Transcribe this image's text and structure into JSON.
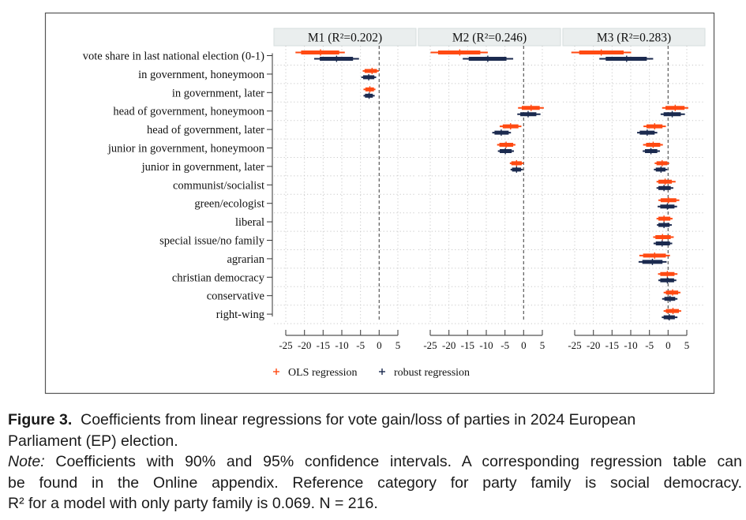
{
  "chart_data": {
    "type": "coefficient-plot",
    "xticks": [
      -25,
      -20,
      -15,
      -10,
      -5,
      0,
      5
    ],
    "xlim": [
      -25,
      5
    ],
    "reference_line": 0,
    "grid": true,
    "legend_position": "bottom-left",
    "categories": [
      "vote share in last national election (0-1)",
      "in government, honeymoon",
      "in government, later",
      "head of government, honeymoon",
      "head of government, later",
      "junior in government, honeymoon",
      "junior in government, later",
      "communist/socialist",
      "green/ecologist",
      "liberal",
      "special issue/no family",
      "agrarian",
      "christian democracy",
      "conservative",
      "right-wing"
    ],
    "series_legend": [
      {
        "name": "OLS regression",
        "color": "#ff4a12",
        "marker": "+"
      },
      {
        "name": "robust regression",
        "color": "#1b2a4f",
        "marker": "+"
      }
    ],
    "interval_fields": [
      "ci95_lo",
      "ci90_lo",
      "coef",
      "ci90_hi",
      "ci95_hi"
    ],
    "panels": [
      {
        "title": "M1 (R²=0.202)",
        "estimates": {
          "OLS regression": [
            [
              -22.4,
              -20.9,
              -15.7,
              -10.7,
              -9.2
            ],
            [
              -4.4,
              -3.9,
              -1.9,
              -0.6,
              -0.1
            ],
            [
              -4.2,
              -3.7,
              -2.5,
              -1.4,
              -1.0
            ],
            null,
            null,
            null,
            null,
            null,
            null,
            null,
            null,
            null,
            null,
            null,
            null
          ],
          "robust regression": [
            [
              -17.4,
              -15.9,
              -11.4,
              -7.0,
              -5.4
            ],
            [
              -4.8,
              -4.3,
              -2.8,
              -1.3,
              -0.8
            ],
            [
              -4.2,
              -3.8,
              -2.7,
              -1.7,
              -1.2
            ],
            null,
            null,
            null,
            null,
            null,
            null,
            null,
            null,
            null,
            null,
            null,
            null
          ]
        }
      },
      {
        "title": "M2 (R²=0.246)",
        "estimates": {
          "OLS regression": [
            [
              -24.9,
              -22.9,
              -17.1,
              -11.6,
              -9.6
            ],
            null,
            null,
            [
              -1.5,
              -0.5,
              2.0,
              4.3,
              5.4
            ],
            [
              -6.4,
              -5.6,
              -3.5,
              -1.4,
              -0.6
            ],
            [
              -7.1,
              -6.5,
              -4.7,
              -2.8,
              -2.2
            ],
            [
              -3.7,
              -3.3,
              -1.9,
              -0.5,
              0.0
            ],
            null,
            null,
            null,
            null,
            null,
            null,
            null,
            null
          ],
          "robust regression": [
            [
              -16.3,
              -14.7,
              -9.6,
              -4.6,
              -2.8
            ],
            null,
            null,
            [
              -1.7,
              -0.9,
              1.2,
              3.4,
              4.5
            ],
            [
              -8.4,
              -7.8,
              -6.0,
              -4.0,
              -3.4
            ],
            [
              -6.9,
              -6.4,
              -4.9,
              -3.2,
              -2.6
            ],
            [
              -3.5,
              -3.1,
              -1.9,
              -0.7,
              -0.2
            ],
            null,
            null,
            null,
            null,
            null,
            null,
            null,
            null
          ]
        }
      },
      {
        "title": "M3 (R²=0.283)",
        "estimates": {
          "OLS regression": [
            [
              -25.9,
              -23.8,
              -17.9,
              -11.9,
              -9.9
            ],
            null,
            null,
            [
              -1.6,
              -0.7,
              1.9,
              4.4,
              5.4
            ],
            [
              -6.6,
              -5.8,
              -3.6,
              -1.5,
              -0.6
            ],
            [
              -6.7,
              -5.9,
              -4.0,
              -2.1,
              -1.4
            ],
            [
              -3.6,
              -3.1,
              -1.6,
              -0.2,
              0.3
            ],
            [
              -3.1,
              -2.6,
              -0.8,
              1.0,
              2.0
            ],
            [
              -2.6,
              -2.0,
              0.1,
              2.2,
              3.0
            ],
            [
              -3.1,
              -2.6,
              -1.1,
              0.6,
              1.2
            ],
            [
              -4.0,
              -3.4,
              -1.5,
              0.7,
              1.5
            ],
            [
              -7.7,
              -6.7,
              -3.6,
              -0.6,
              0.5
            ],
            [
              -2.7,
              -2.1,
              -0.2,
              1.7,
              2.5
            ],
            [
              -1.2,
              -0.6,
              1.2,
              2.7,
              3.3
            ],
            [
              -1.2,
              -0.6,
              1.3,
              2.9,
              3.5
            ]
          ],
          "robust regression": [
            [
              -18.4,
              -16.7,
              -11.1,
              -5.7,
              -4.0
            ],
            null,
            null,
            [
              -2.0,
              -1.2,
              1.1,
              3.4,
              4.5
            ],
            [
              -8.3,
              -7.6,
              -5.6,
              -3.6,
              -2.9
            ],
            [
              -6.8,
              -6.2,
              -4.6,
              -2.9,
              -2.2
            ],
            [
              -3.8,
              -3.3,
              -1.9,
              -0.7,
              -0.2
            ],
            [
              -3.1,
              -2.6,
              -1.1,
              0.7,
              1.4
            ],
            [
              -2.8,
              -2.1,
              -0.2,
              1.7,
              2.4
            ],
            [
              -3.0,
              -2.6,
              -1.1,
              0.4,
              1.0
            ],
            [
              -3.9,
              -3.3,
              -1.6,
              0.5,
              1.1
            ],
            [
              -7.9,
              -6.9,
              -4.2,
              -1.5,
              -0.4
            ],
            [
              -2.6,
              -2.1,
              -0.2,
              1.6,
              2.2
            ],
            [
              -1.6,
              -1.0,
              0.5,
              1.9,
              2.5
            ],
            [
              -1.7,
              -1.2,
              0.3,
              1.8,
              2.5
            ]
          ]
        }
      }
    ]
  },
  "caption": {
    "label": "Figure 3.",
    "title_line1": "Coefficients from linear regressions for vote gain/loss of parties in 2024 European",
    "title_line2": "Parliament (EP) election.",
    "note_label": "Note:",
    "note_line1": "Coefficients with 90% and 95% confidence intervals. A corresponding regression table can",
    "note_line2": "be found in the Online appendix. Reference category for party family is social democracy.",
    "note_line3": "R² for a model with only party family is 0.069. N = 216."
  }
}
